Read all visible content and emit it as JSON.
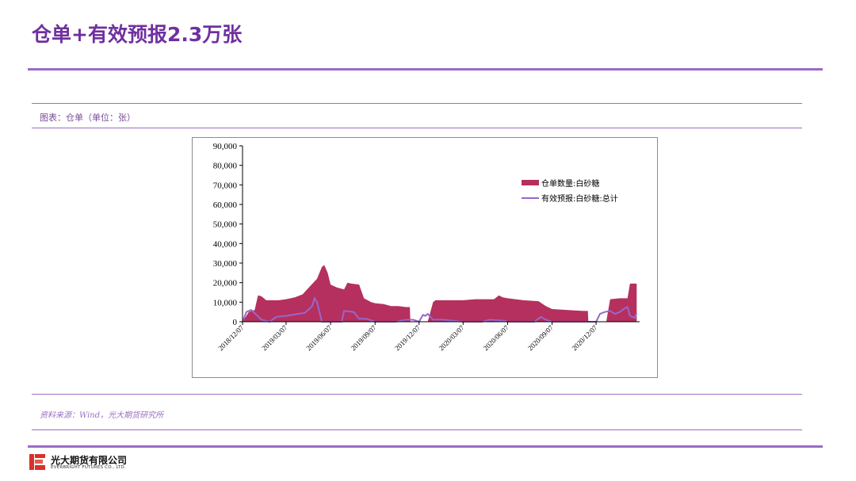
{
  "page": {
    "title": "仓单+有效预报2.3万张",
    "caption": "图表：仓单（单位：张）",
    "source": "资料来源：Wind，光大期货研究所",
    "company_cn": "光大期货有限公司",
    "company_en": "EVERBRIGHT FUTURES CO., LTD."
  },
  "colors": {
    "title": "#7030a0",
    "rule": "#9b6bc5",
    "area": "#b5305e",
    "line": "#9966cc",
    "logo": "#d9312b"
  },
  "chart_data": {
    "type": "area",
    "title": "",
    "xlabel": "",
    "ylabel": "",
    "ylim": [
      0,
      90000
    ],
    "yticks": [
      0,
      10000,
      20000,
      30000,
      40000,
      50000,
      60000,
      70000,
      80000,
      90000
    ],
    "ytick_labels": [
      "0",
      "10,000",
      "20,000",
      "30,000",
      "40,000",
      "50,000",
      "60,000",
      "70,000",
      "80,000",
      "90,000"
    ],
    "xlim": [
      "2018-12-07",
      "2021-03-07"
    ],
    "xtick_labels": [
      "2018/12/07",
      "2019/03/07",
      "2019/06/07",
      "2019/09/07",
      "2019/12/07",
      "2020/03/07",
      "2020/06/07",
      "2020/09/07",
      "2020/12/07"
    ],
    "legend_position": "top-right",
    "grid": false,
    "series": [
      {
        "name": "仓单数量:白砂糖",
        "kind": "area",
        "color": "#b5305e",
        "points": [
          [
            "2018-12-07",
            0
          ],
          [
            "2018-12-20",
            5000
          ],
          [
            "2019-01-01",
            6000
          ],
          [
            "2019-01-08",
            13500
          ],
          [
            "2019-01-15",
            13000
          ],
          [
            "2019-01-25",
            11000
          ],
          [
            "2019-02-20",
            11000
          ],
          [
            "2019-03-07",
            11500
          ],
          [
            "2019-03-25",
            12500
          ],
          [
            "2019-04-10",
            14000
          ],
          [
            "2019-04-25",
            18000
          ],
          [
            "2019-05-10",
            22000
          ],
          [
            "2019-05-20",
            28000
          ],
          [
            "2019-05-25",
            29000
          ],
          [
            "2019-06-01",
            25000
          ],
          [
            "2019-06-07",
            19000
          ],
          [
            "2019-06-20",
            17500
          ],
          [
            "2019-07-05",
            16500
          ],
          [
            "2019-07-12",
            20000
          ],
          [
            "2019-07-20",
            19500
          ],
          [
            "2019-08-05",
            19000
          ],
          [
            "2019-08-15",
            12000
          ],
          [
            "2019-08-30",
            10000
          ],
          [
            "2019-09-07",
            9500
          ],
          [
            "2019-09-25",
            9000
          ],
          [
            "2019-10-10",
            8000
          ],
          [
            "2019-10-25",
            8000
          ],
          [
            "2019-11-10",
            7500
          ],
          [
            "2019-11-18",
            7500
          ],
          [
            "2019-11-19",
            0
          ],
          [
            "2019-12-25",
            0
          ],
          [
            "2020-01-05",
            10000
          ],
          [
            "2020-01-10",
            11000
          ],
          [
            "2020-02-15",
            11000
          ],
          [
            "2020-03-07",
            11000
          ],
          [
            "2020-04-01",
            11500
          ],
          [
            "2020-05-10",
            11500
          ],
          [
            "2020-05-20",
            13500
          ],
          [
            "2020-05-28",
            12500
          ],
          [
            "2020-06-07",
            12000
          ],
          [
            "2020-07-10",
            11000
          ],
          [
            "2020-08-10",
            10500
          ],
          [
            "2020-08-25",
            8000
          ],
          [
            "2020-09-07",
            6500
          ],
          [
            "2020-10-10",
            6000
          ],
          [
            "2020-11-10",
            5500
          ],
          [
            "2020-11-20",
            5500
          ],
          [
            "2020-11-21",
            0
          ],
          [
            "2020-12-28",
            0
          ],
          [
            "2021-01-05",
            11500
          ],
          [
            "2021-01-25",
            12000
          ],
          [
            "2021-02-10",
            12000
          ],
          [
            "2021-02-15",
            19500
          ],
          [
            "2021-03-01",
            19500
          ]
        ]
      },
      {
        "name": "有效预报:白砂糖:总计",
        "kind": "line",
        "color": "#9966cc",
        "points": [
          [
            "2018-12-07",
            0
          ],
          [
            "2018-12-15",
            5000
          ],
          [
            "2018-12-25",
            6000
          ],
          [
            "2019-01-05",
            3500
          ],
          [
            "2019-01-15",
            1000
          ],
          [
            "2019-02-01",
            0
          ],
          [
            "2019-02-15",
            2500
          ],
          [
            "2019-03-07",
            3000
          ],
          [
            "2019-04-01",
            4000
          ],
          [
            "2019-04-15",
            4500
          ],
          [
            "2019-04-30",
            8000
          ],
          [
            "2019-05-05",
            12000
          ],
          [
            "2019-05-10",
            10000
          ],
          [
            "2019-05-20",
            0
          ],
          [
            "2019-06-07",
            0
          ],
          [
            "2019-06-30",
            0
          ],
          [
            "2019-07-05",
            5500
          ],
          [
            "2019-07-25",
            5000
          ],
          [
            "2019-08-05",
            1500
          ],
          [
            "2019-08-20",
            1500
          ],
          [
            "2019-09-07",
            0
          ],
          [
            "2019-10-20",
            0
          ],
          [
            "2019-11-10",
            1000
          ],
          [
            "2019-11-25",
            1000
          ],
          [
            "2019-12-07",
            0
          ],
          [
            "2019-12-15",
            3500
          ],
          [
            "2019-12-20",
            3000
          ],
          [
            "2019-12-25",
            4000
          ],
          [
            "2020-01-05",
            1000
          ],
          [
            "2020-01-25",
            1000
          ],
          [
            "2020-02-15",
            500
          ],
          [
            "2020-03-07",
            0
          ],
          [
            "2020-04-15",
            0
          ],
          [
            "2020-05-01",
            1000
          ],
          [
            "2020-06-01",
            500
          ],
          [
            "2020-06-07",
            0
          ],
          [
            "2020-08-01",
            0
          ],
          [
            "2020-08-15",
            2500
          ],
          [
            "2020-08-25",
            1000
          ],
          [
            "2020-09-07",
            0
          ],
          [
            "2020-11-25",
            0
          ],
          [
            "2020-12-07",
            0
          ],
          [
            "2020-12-15",
            4000
          ],
          [
            "2020-12-25",
            5000
          ],
          [
            "2021-01-05",
            5500
          ],
          [
            "2021-01-15",
            4000
          ],
          [
            "2021-01-25",
            5000
          ],
          [
            "2021-02-05",
            7000
          ],
          [
            "2021-02-10",
            7500
          ],
          [
            "2021-02-15",
            3000
          ],
          [
            "2021-02-25",
            2000
          ],
          [
            "2021-03-01",
            4500
          ]
        ]
      }
    ]
  }
}
